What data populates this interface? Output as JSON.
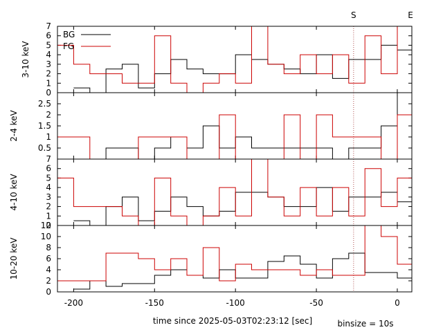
{
  "chart_data": {
    "type": "line",
    "step": true,
    "xlabel": "time since 2025-05-03T02:23:12 [sec]",
    "binsize_label": "binsize = 10s",
    "xlim": [
      -210,
      9
    ],
    "xticks": [
      -200,
      -150,
      -100,
      -50,
      0
    ],
    "markers": [
      {
        "label": "S",
        "x": -27
      },
      {
        "label": "E",
        "x": 9
      }
    ],
    "legend": {
      "position": "top-left",
      "entries": [
        {
          "name": "BG",
          "color": "#000000"
        },
        {
          "name": "FG",
          "color": "#cc0000"
        }
      ]
    },
    "panels": [
      {
        "ylabel": "3-10 keV",
        "ylim": [
          0,
          7
        ],
        "yticks": [
          0,
          1,
          2,
          3,
          4,
          5,
          6,
          7
        ],
        "series": [
          {
            "name": "BG",
            "color": "#000000",
            "x": [
              -200,
              -190,
              -180,
              -170,
              -160,
              -150,
              -140,
              -130,
              -120,
              -110,
              -100,
              -90,
              -80,
              -70,
              -60,
              -50,
              -40,
              -30,
              -20,
              -10,
              0,
              10
            ],
            "values": [
              0.5,
              0,
              2.5,
              3,
              0.5,
              2,
              3.5,
              2.5,
              2,
              2,
              4,
              3.5,
              3,
              2.5,
              2,
              4,
              1.5,
              3.5,
              3.5,
              5,
              4.5,
              4.5
            ]
          },
          {
            "name": "FG",
            "color": "#cc0000",
            "x": [
              -210,
              -200,
              -190,
              -180,
              -170,
              -160,
              -150,
              -140,
              -130,
              -120,
              -110,
              -100,
              -90,
              -80,
              -70,
              -60,
              -50,
              -40,
              -30,
              -20,
              -10,
              0,
              10
            ],
            "values": [
              5,
              3,
              2,
              2,
              1,
              1,
              6,
              1,
              0,
              1,
              2,
              1,
              7,
              3,
              2,
              4,
              2,
              4,
              1,
              6,
              2,
              7,
              7
            ]
          }
        ]
      },
      {
        "ylabel": "2-4 keV",
        "ylim": [
          0,
          3
        ],
        "yticks": [
          0.5,
          1,
          1.5,
          2,
          2.5
        ],
        "yticklabels": [
          "0.5",
          "1",
          "1.5",
          "2",
          "2.5"
        ],
        "series": [
          {
            "name": "BG",
            "color": "#000000",
            "x": [
              -200,
              -190,
              -180,
              -170,
              -160,
              -150,
              -140,
              -130,
              -120,
              -110,
              -100,
              -90,
              -80,
              -70,
              -60,
              -50,
              -40,
              -30,
              -20,
              -10,
              0,
              10
            ],
            "values": [
              0,
              0,
              0.5,
              0.5,
              0,
              0.5,
              1,
              0.5,
              1.5,
              0.5,
              1,
              0.5,
              0.5,
              0.5,
              0.5,
              0.5,
              0,
              0.5,
              0.5,
              1.5,
              3,
              3
            ]
          },
          {
            "name": "FG",
            "color": "#cc0000",
            "x": [
              -210,
              -190,
              -160,
              -140,
              -130,
              -110,
              -100,
              -70,
              -60,
              -50,
              -40,
              -10,
              0,
              10
            ],
            "values": [
              1,
              0,
              1,
              1,
              0,
              2,
              0,
              2,
              0,
              2,
              1,
              0,
              2,
              2
            ]
          }
        ]
      },
      {
        "ylabel": "4-10 keV",
        "ylim": [
          0,
          7
        ],
        "yticks": [
          0,
          1,
          2,
          3,
          4,
          5,
          6,
          7
        ],
        "series": [
          {
            "name": "BG",
            "color": "#000000",
            "x": [
              -200,
              -190,
              -180,
              -170,
              -160,
              -150,
              -140,
              -130,
              -120,
              -110,
              -100,
              -90,
              -80,
              -70,
              -60,
              -50,
              -40,
              -30,
              -20,
              -10,
              0,
              10
            ],
            "values": [
              0.5,
              0,
              2,
              3,
              0.5,
              1.5,
              3,
              2,
              1,
              1.5,
              3.5,
              3.5,
              3,
              2,
              2,
              4,
              1.5,
              3,
              3,
              3.5,
              2.5,
              2.5
            ]
          },
          {
            "name": "FG",
            "color": "#cc0000",
            "x": [
              -210,
              -200,
              -180,
              -170,
              -160,
              -150,
              -140,
              -130,
              -120,
              -110,
              -100,
              -90,
              -80,
              -70,
              -60,
              -50,
              -40,
              -30,
              -20,
              -10,
              0,
              10
            ],
            "values": [
              5,
              2,
              2,
              1,
              0,
              5,
              1,
              0,
              1,
              4,
              1,
              7,
              3,
              1,
              4,
              1,
              4,
              1,
              6,
              2,
              5,
              5
            ]
          }
        ]
      },
      {
        "ylabel": "10-20 keV",
        "ylim": [
          0,
          12
        ],
        "yticks": [
          0,
          2,
          4,
          6,
          8,
          10,
          12
        ],
        "series": [
          {
            "name": "BG",
            "color": "#000000",
            "x": [
              -200,
              -190,
              -180,
              -170,
              -150,
              -140,
              -130,
              -120,
              -110,
              -100,
              -80,
              -70,
              -60,
              -50,
              -40,
              -30,
              -20,
              -10,
              0,
              10
            ],
            "values": [
              0.5,
              2,
              1,
              1.5,
              3,
              4,
              3,
              2.5,
              4,
              2.5,
              5.5,
              6.5,
              5,
              2.5,
              6,
              7,
              3.5,
              3.5,
              2.5,
              2.5
            ]
          },
          {
            "name": "FG",
            "color": "#cc0000",
            "x": [
              -210,
              -180,
              -160,
              -150,
              -140,
              -130,
              -120,
              -110,
              -100,
              -90,
              -80,
              -60,
              -50,
              -40,
              -30,
              -20,
              -10,
              0,
              10
            ],
            "values": [
              2,
              7,
              6,
              4,
              6,
              3,
              8,
              2,
              5,
              4,
              4,
              3,
              4,
              3,
              3,
              12,
              10,
              5,
              5
            ]
          }
        ]
      }
    ]
  }
}
